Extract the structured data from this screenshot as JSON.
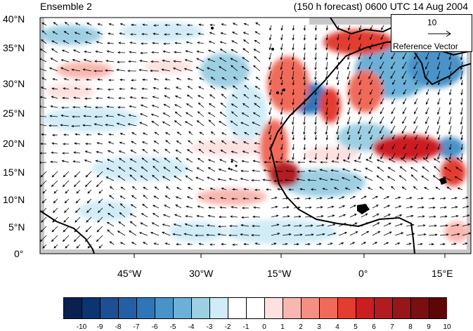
{
  "header": {
    "left_title": "Ensemble 2",
    "right_title": "(150 h forecast) 0600 UTC 14 Aug 2004"
  },
  "axes": {
    "lat_labels": [
      "40°N",
      "35°N",
      "30°N",
      "25°N",
      "20°N",
      "15°N",
      "10°N",
      "5°N",
      "0°"
    ],
    "lon_labels": [
      "45°W",
      "30°W",
      "15°W",
      "0°",
      "15°E"
    ],
    "lon_range_deg": [
      -60,
      20
    ],
    "lat_range_deg": [
      0,
      40
    ]
  },
  "reference_vector": {
    "magnitude": "10",
    "label": "Reference Vector"
  },
  "colorbar": {
    "labels": [
      "-10",
      "-9",
      "-8",
      "-7",
      "-6",
      "-5",
      "-4",
      "-3",
      "-2",
      "-1",
      "0",
      "1",
      "2",
      "3",
      "4",
      "5",
      "6",
      "7",
      "8",
      "9",
      "10"
    ],
    "colors": [
      "#0a2150",
      "#0b3471",
      "#1c4f94",
      "#245fa6",
      "#2f76b9",
      "#4993c8",
      "#6cb0d7",
      "#9dcfe3",
      "#d1ecf6",
      "#ffffff",
      "#ffffff",
      "#fde1e1",
      "#f8b7b0",
      "#f48f84",
      "#f06a5a",
      "#e33d32",
      "#cc1e22",
      "#b21b20",
      "#971619",
      "#7a0f12",
      "#5c0608"
    ]
  },
  "style": {
    "land_outline": "#000000",
    "vector_color": "#000000",
    "missing_data_gray": "#c8c8c8"
  }
}
